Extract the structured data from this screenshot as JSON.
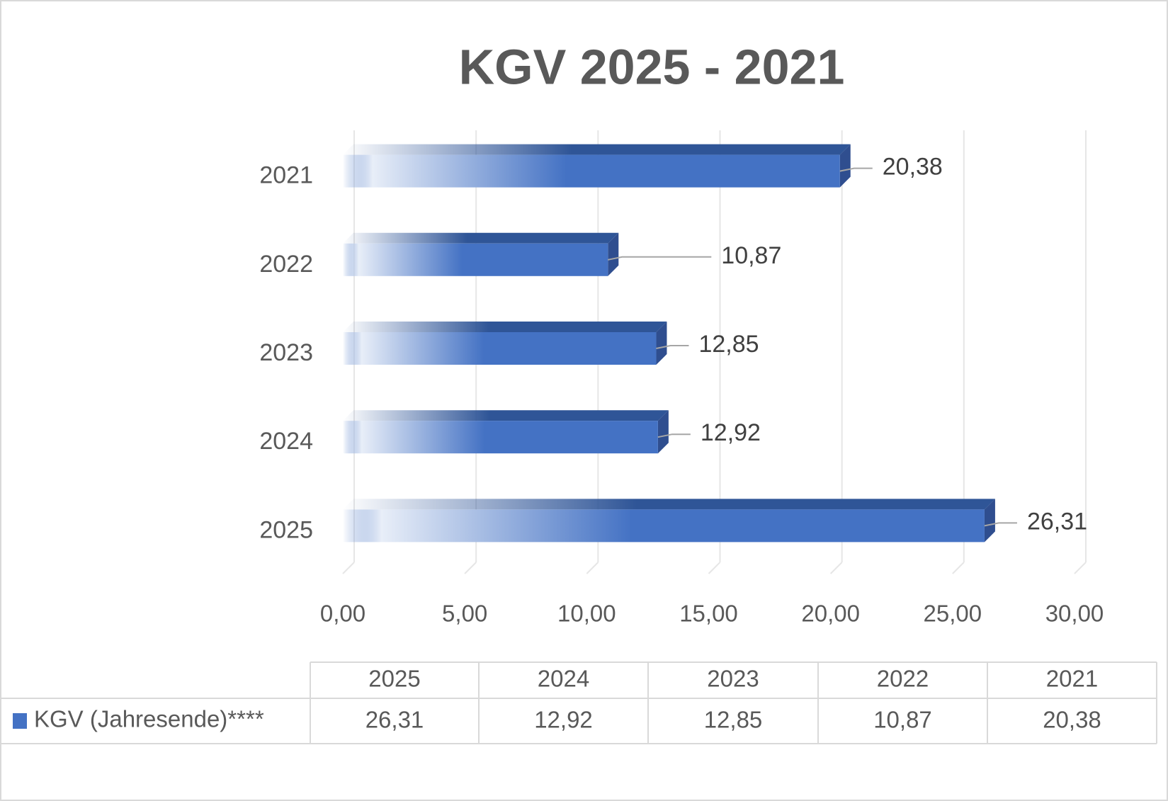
{
  "chart_data": {
    "type": "bar",
    "orientation": "horizontal",
    "title": "KGV 2025 - 2021",
    "categories": [
      "2021",
      "2022",
      "2023",
      "2024",
      "2025"
    ],
    "series": [
      {
        "name": "KGV (Jahresende)****",
        "color": "#4472c4",
        "values": [
          20.38,
          10.87,
          12.85,
          12.92,
          26.31
        ],
        "value_labels": [
          "20,38",
          "10,87",
          "12,85",
          "12,92",
          "26,31"
        ]
      }
    ],
    "xlim": [
      0,
      30
    ],
    "xticks": [
      {
        "value": 0,
        "label": "0,00"
      },
      {
        "value": 5,
        "label": "5,00"
      },
      {
        "value": 10,
        "label": "10,00"
      },
      {
        "value": 15,
        "label": "15,00"
      },
      {
        "value": 20,
        "label": "20,00"
      },
      {
        "value": 25,
        "label": "25,00"
      },
      {
        "value": 30,
        "label": "30,00"
      }
    ],
    "grid": true,
    "data_table": true
  }
}
